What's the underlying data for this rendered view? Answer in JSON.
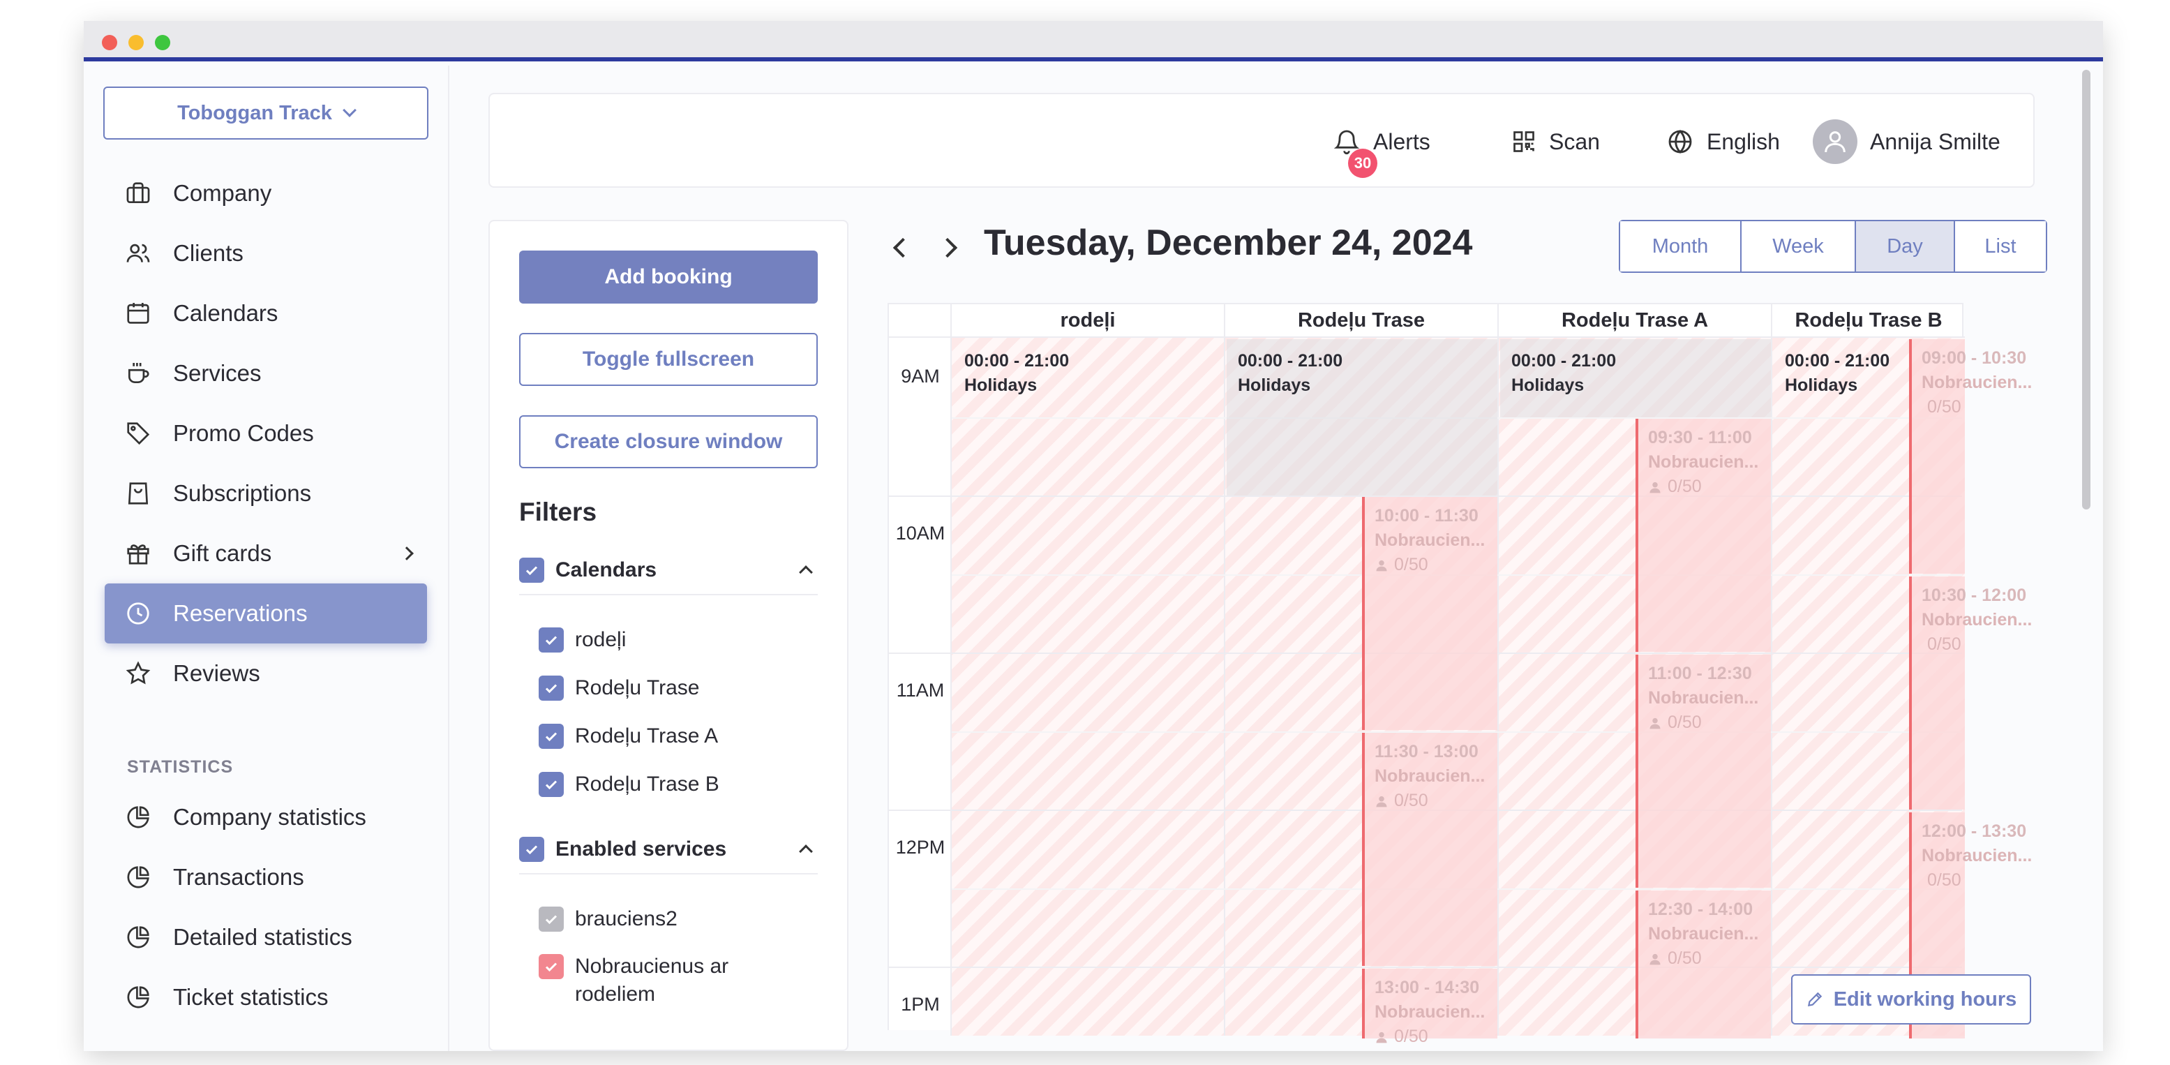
{
  "sidebar": {
    "org": "Toboggan Track",
    "items": [
      {
        "label": "Company",
        "icon": "briefcase-icon"
      },
      {
        "label": "Clients",
        "icon": "users-icon"
      },
      {
        "label": "Calendars",
        "icon": "calendar-icon"
      },
      {
        "label": "Services",
        "icon": "coffee-cup-icon"
      },
      {
        "label": "Promo Codes",
        "icon": "tag-icon"
      },
      {
        "label": "Subscriptions",
        "icon": "shopping-bag-icon"
      },
      {
        "label": "Gift cards",
        "icon": "gift-icon"
      },
      {
        "label": "Reservations",
        "icon": "clock-icon",
        "active": true
      },
      {
        "label": "Reviews",
        "icon": "star-icon"
      }
    ],
    "section_statistics": "STATISTICS",
    "stats_items": [
      {
        "label": "Company statistics",
        "icon": "pie-chart-icon"
      },
      {
        "label": "Transactions",
        "icon": "pie-chart-icon"
      },
      {
        "label": "Detailed statistics",
        "icon": "pie-chart-icon"
      },
      {
        "label": "Ticket statistics",
        "icon": "pie-chart-icon"
      }
    ]
  },
  "header": {
    "alerts_label": "Alerts",
    "alerts_count": "30",
    "scan_label": "Scan",
    "language_label": "English",
    "user_name": "Annija Smilte"
  },
  "panel": {
    "add_booking": "Add booking",
    "toggle_fullscreen": "Toggle fullscreen",
    "create_closure": "Create closure window",
    "filters_title": "Filters",
    "calendars_group": "Calendars",
    "calendars": [
      "rodeļi",
      "Rodeļu Trase",
      "Rodeļu Trase A",
      "Rodeļu Trase B"
    ],
    "services_group": "Enabled services",
    "services": [
      "brauciens2",
      "Nobraucienus ar rodeliem"
    ]
  },
  "calendar": {
    "title": "Tuesday, December 24, 2024",
    "views": [
      "Month",
      "Week",
      "Day",
      "List"
    ],
    "active_view": "Day",
    "columns": [
      "rodeļi",
      "Rodeļu Trase",
      "Rodeļu Trase A",
      "Rodeļu Trase B"
    ],
    "hours": [
      "9AM",
      "10AM",
      "11AM",
      "12PM",
      "1PM"
    ],
    "holiday_time": "00:00 - 21:00",
    "holiday_label": "Holidays",
    "event_label": "Nobraucien...",
    "capacity": "0/50",
    "events_col2": [
      "10:00 - 11:30",
      "11:30 - 13:00",
      "13:00 - 14:30"
    ],
    "events_col3": [
      "09:30 - 11:00",
      "11:00 - 12:30",
      "12:30 - 14:00"
    ],
    "events_col4": [
      "09:00 - 10:30",
      "10:30 - 12:00",
      "12:00 - 13:30"
    ],
    "edit_hours": "Edit working hours"
  },
  "colors": {
    "accent": "#6f7fc0",
    "alert_badge": "#f2526f",
    "event_border": "#ee6a6f"
  }
}
